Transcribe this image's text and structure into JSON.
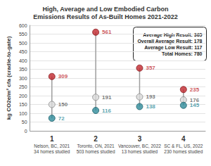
{
  "chart_data": {
    "type": "dumbbell",
    "title": "High, Average and Low Embodied Carbon\nEmissions Results of As-Built Homes 2021-2022",
    "y_label": "kg CO2e/m² cfa (cradle-to-gate)",
    "categories": [
      "1\nNelson, BC, 2021\n34 homes studied",
      "2\nToronto, ON, 2021\n503 homes studied",
      "3\nVancouver, BC, 2022\n13 homes studied",
      "4\nSC & FL, US, 2022\n230 homes studied"
    ],
    "series": [
      {
        "color": "#c0272d",
        "values": [
          309,
          561,
          357,
          235
        ]
      },
      {
        "color": "#d9d9d9",
        "values": [
          150,
          191,
          193,
          176
        ]
      },
      {
        "color": "#2e8b9a",
        "values": [
          72,
          116,
          138,
          145
        ]
      }
    ],
    "marker": "circle",
    "ylim": [
      0,
      600
    ],
    "yticks": [
      0,
      50,
      100,
      150,
      200,
      250,
      300,
      350,
      400,
      450,
      500,
      550,
      600
    ],
    "grid": true,
    "data_labels": true,
    "annotations": [
      "Average High Result: 365",
      "Overall Average Result: 178",
      "Average Low Result: 117",
      "Total Homes: 780"
    ]
  }
}
